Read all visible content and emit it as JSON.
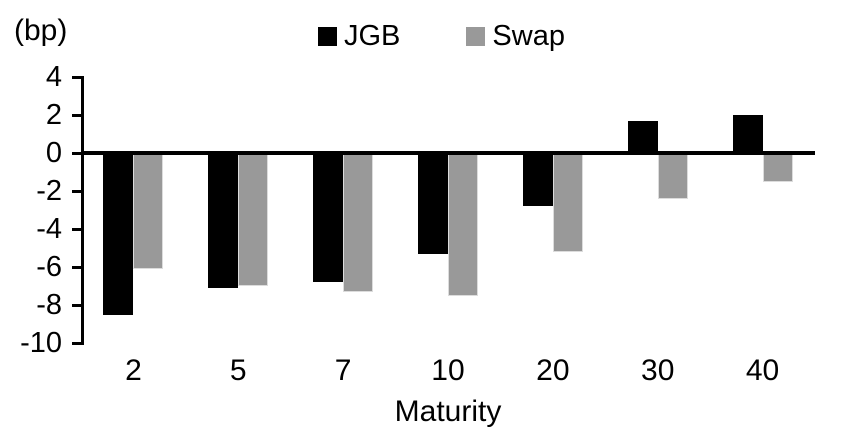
{
  "chart_data": {
    "type": "bar",
    "title": "",
    "unit_label": "(bp)",
    "xlabel": "Maturity",
    "ylabel": "(bp)",
    "categories": [
      "2",
      "5",
      "7",
      "10",
      "20",
      "30",
      "40"
    ],
    "series": [
      {
        "name": "JGB",
        "color": "#000000",
        "values": [
          -8.5,
          -7.1,
          -6.8,
          -5.3,
          -2.8,
          1.7,
          2.0
        ]
      },
      {
        "name": "Swap",
        "color": "#999999",
        "values": [
          -6.1,
          -7.0,
          -7.3,
          -7.5,
          -5.2,
          -2.4,
          -1.5
        ]
      }
    ],
    "ylim": [
      -10,
      4
    ],
    "yticks": [
      4,
      2,
      0,
      -2,
      -4,
      -6,
      -8,
      -10
    ],
    "grid": false,
    "legend_position": "top-center"
  }
}
